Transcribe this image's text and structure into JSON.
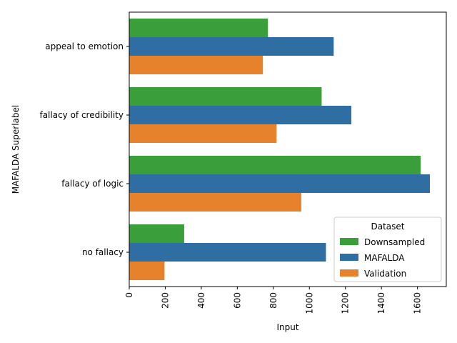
{
  "chart_data": {
    "type": "bar",
    "orientation": "horizontal",
    "title": "",
    "xlabel": "Input",
    "ylabel": "MAFALDA Superlabel",
    "categories": [
      "appeal to emotion",
      "fallacy of credibility",
      "fallacy of logic",
      "no fallacy"
    ],
    "series": [
      {
        "name": "Downsampled",
        "color": "#3a9e3a",
        "values": [
          770,
          1068,
          1618,
          305
        ]
      },
      {
        "name": "MAFALDA",
        "color": "#2e6ea3",
        "values": [
          1135,
          1233,
          1669,
          1092
        ]
      },
      {
        "name": "Validation",
        "color": "#e6822b",
        "values": [
          742,
          818,
          955,
          196
        ]
      }
    ],
    "xlim": [
      0,
      1760
    ],
    "xticks": [
      0,
      200,
      400,
      600,
      800,
      1000,
      1200,
      1400,
      1600
    ],
    "grid": false,
    "legend": {
      "title": "Dataset",
      "placement": "lower-right"
    }
  }
}
